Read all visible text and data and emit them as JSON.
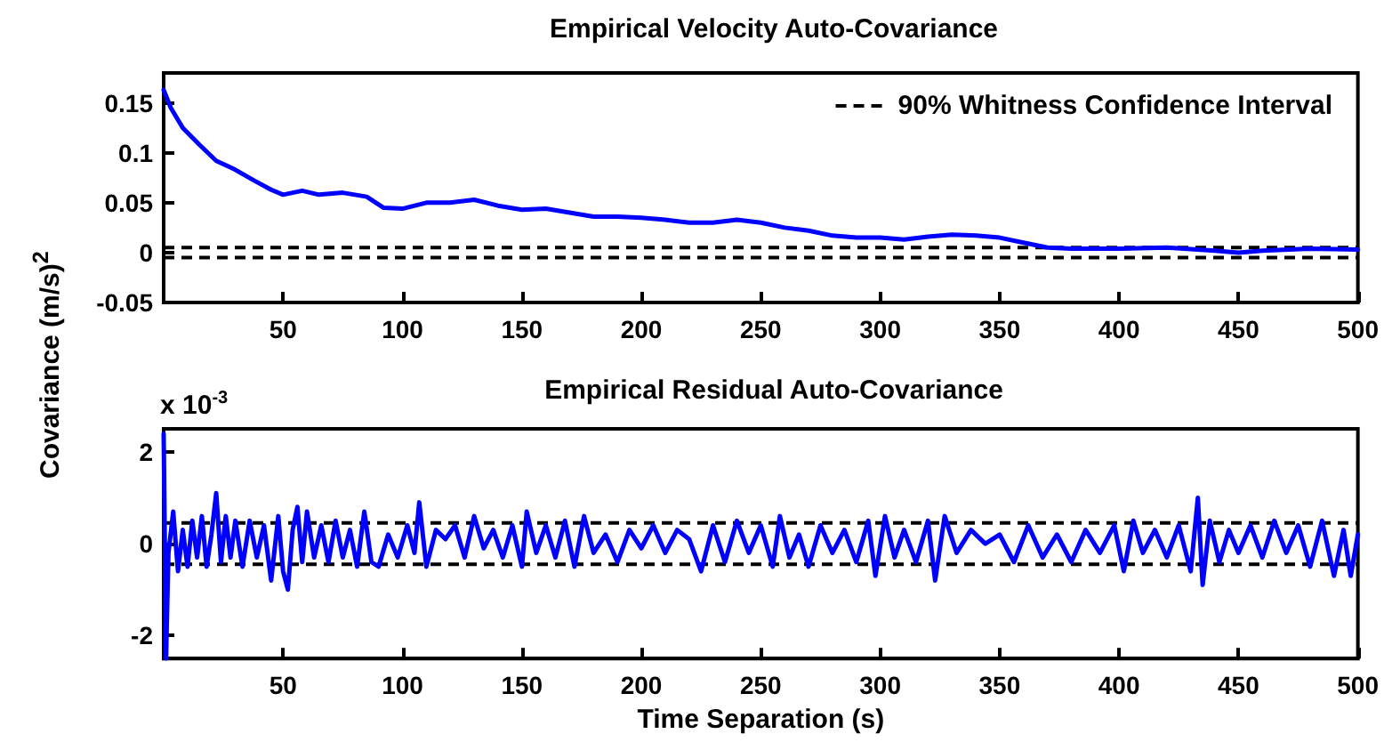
{
  "chart_data": [
    {
      "type": "line",
      "title": "Empirical Velocity Auto-Covariance",
      "ylabel": "Covariance (m/s)$^{2}$",
      "legend": "top right",
      "grid": false,
      "marker": "none",
      "line_style": "solid",
      "xlim": [
        0,
        500
      ],
      "xticks": [
        50,
        100,
        150,
        200,
        250,
        300,
        350,
        400,
        450,
        500
      ],
      "ylim": [
        -0.05,
        0.18
      ],
      "yticks": [
        -0.05,
        0,
        0.05,
        0.1,
        0.15
      ],
      "ref_lines": [
        {
          "axis": "y",
          "value": 0.005,
          "label": "90% Whitness Confidence Interval",
          "color": "#000000",
          "line_style": "dashed"
        },
        {
          "axis": "y",
          "value": -0.005,
          "color": "#000000",
          "line_style": "dashed"
        }
      ],
      "series": [
        {
          "color": "#0000ff",
          "x": [
            0,
            3,
            8,
            15,
            22,
            30,
            38,
            45,
            50,
            58,
            65,
            75,
            85,
            92,
            100,
            110,
            120,
            130,
            140,
            150,
            160,
            170,
            180,
            190,
            200,
            210,
            220,
            230,
            240,
            250,
            260,
            270,
            280,
            290,
            300,
            310,
            320,
            330,
            340,
            350,
            360,
            370,
            380,
            400,
            420,
            440,
            450,
            460,
            480,
            500
          ],
          "values": [
            0.163,
            0.145,
            0.125,
            0.108,
            0.092,
            0.083,
            0.072,
            0.063,
            0.058,
            0.062,
            0.058,
            0.06,
            0.056,
            0.045,
            0.044,
            0.05,
            0.05,
            0.053,
            0.047,
            0.043,
            0.044,
            0.04,
            0.036,
            0.036,
            0.035,
            0.033,
            0.03,
            0.03,
            0.033,
            0.03,
            0.025,
            0.022,
            0.017,
            0.015,
            0.015,
            0.013,
            0.016,
            0.018,
            0.017,
            0.015,
            0.01,
            0.005,
            0.004,
            0.004,
            0.005,
            0.002,
            0.0,
            0.002,
            0.004,
            0.003
          ]
        }
      ]
    },
    {
      "type": "line",
      "title": "Empirical Residual Auto-Covariance",
      "xlabel": "Time Separation (s)",
      "annotations": [
        "x 10$^{-3}$"
      ],
      "legend": false,
      "grid": false,
      "marker": "none",
      "line_style": "solid",
      "xlim": [
        0,
        500
      ],
      "xticks": [
        50,
        100,
        150,
        200,
        250,
        300,
        350,
        400,
        450,
        500
      ],
      "ylim": [
        -2.5,
        2.5
      ],
      "yticks": [
        -2,
        0,
        2
      ],
      "ref_lines": [
        {
          "axis": "y",
          "value": 0.45,
          "color": "#000000",
          "line_style": "dashed"
        },
        {
          "axis": "y",
          "value": -0.45,
          "color": "#000000",
          "line_style": "dashed"
        }
      ],
      "series": [
        {
          "color": "#0000ff",
          "x": [
            0,
            1,
            2,
            4,
            6,
            8,
            10,
            12,
            14,
            16,
            18,
            20,
            22,
            24,
            26,
            28,
            30,
            33,
            36,
            39,
            42,
            45,
            48,
            50,
            52,
            54,
            56,
            58,
            60,
            63,
            66,
            69,
            72,
            75,
            78,
            81,
            84,
            87,
            90,
            94,
            98,
            102,
            105,
            107,
            110,
            114,
            118,
            122,
            126,
            130,
            134,
            138,
            142,
            146,
            150,
            152,
            156,
            160,
            164,
            168,
            172,
            176,
            180,
            185,
            190,
            195,
            200,
            205,
            210,
            215,
            220,
            225,
            230,
            235,
            240,
            245,
            250,
            255,
            258,
            262,
            266,
            270,
            275,
            280,
            285,
            290,
            295,
            298,
            302,
            306,
            310,
            315,
            320,
            323,
            327,
            332,
            338,
            344,
            350,
            356,
            362,
            368,
            374,
            380,
            386,
            392,
            398,
            402,
            406,
            410,
            415,
            420,
            425,
            430,
            433,
            435,
            438,
            442,
            446,
            450,
            455,
            460,
            465,
            470,
            475,
            480,
            485,
            490,
            494,
            497,
            500
          ],
          "values": [
            2.4,
            -2.5,
            -0.2,
            0.7,
            -0.6,
            0.3,
            -0.5,
            0.5,
            -0.3,
            0.6,
            -0.5,
            0.2,
            1.1,
            -0.4,
            0.6,
            -0.3,
            0.5,
            -0.5,
            0.5,
            -0.3,
            0.4,
            -0.8,
            0.6,
            -0.6,
            -1.0,
            0.3,
            0.8,
            -0.4,
            0.7,
            -0.3,
            0.4,
            -0.4,
            0.5,
            -0.3,
            0.3,
            -0.5,
            0.7,
            -0.4,
            -0.5,
            0.2,
            -0.3,
            0.4,
            -0.2,
            0.9,
            -0.5,
            0.3,
            0.1,
            0.4,
            -0.3,
            0.6,
            -0.1,
            0.3,
            -0.3,
            0.4,
            -0.5,
            0.7,
            -0.2,
            0.4,
            -0.3,
            0.5,
            -0.5,
            0.6,
            -0.2,
            0.2,
            -0.4,
            0.3,
            -0.1,
            0.4,
            -0.2,
            0.3,
            0.1,
            -0.6,
            0.4,
            -0.4,
            0.5,
            -0.2,
            0.4,
            -0.5,
            0.6,
            -0.3,
            0.2,
            -0.5,
            0.4,
            -0.2,
            0.3,
            -0.4,
            0.5,
            -0.7,
            0.6,
            -0.3,
            0.3,
            -0.4,
            0.5,
            -0.8,
            0.6,
            -0.2,
            0.3,
            0.0,
            0.2,
            -0.4,
            0.4,
            -0.3,
            0.2,
            -0.4,
            0.3,
            -0.2,
            0.4,
            -0.6,
            0.5,
            -0.2,
            0.3,
            -0.3,
            0.4,
            -0.6,
            1.0,
            -0.9,
            0.5,
            -0.4,
            0.3,
            -0.2,
            0.4,
            -0.3,
            0.5,
            -0.2,
            0.4,
            -0.5,
            0.5,
            -0.7,
            0.3,
            -0.7,
            0.2
          ]
        }
      ]
    }
  ]
}
